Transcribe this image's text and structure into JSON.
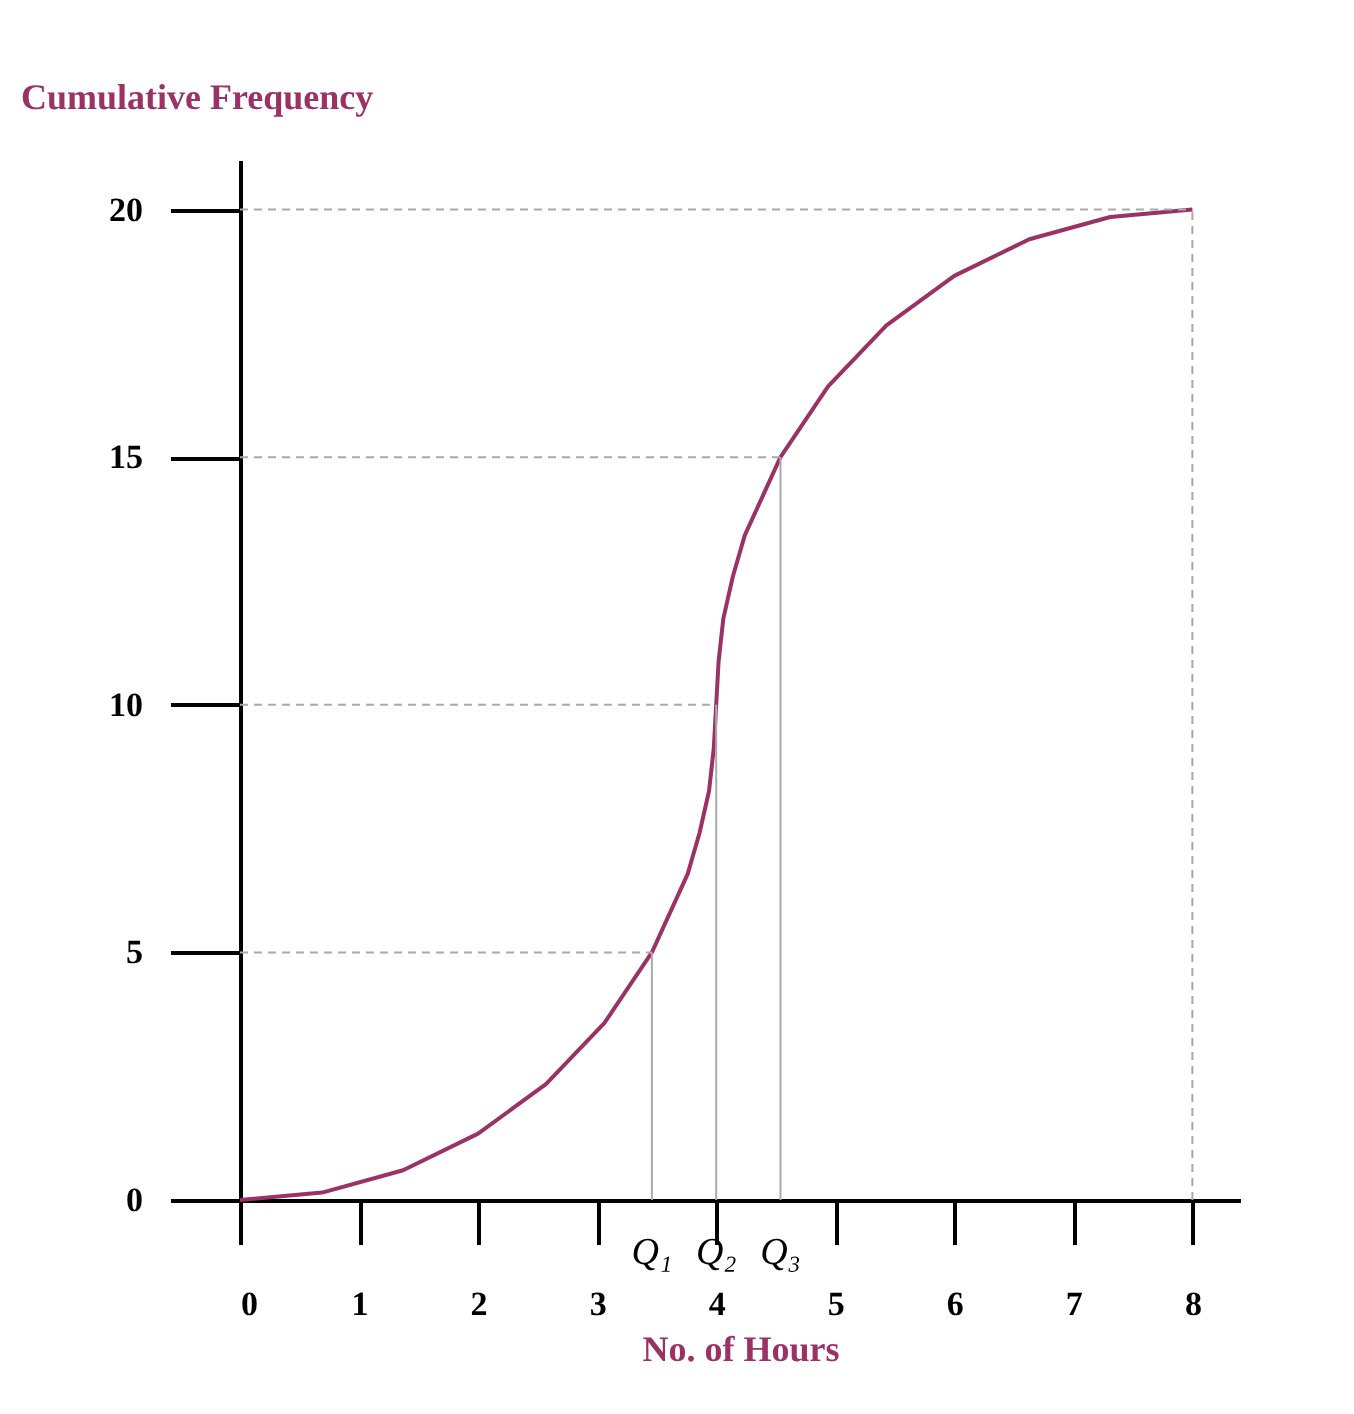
{
  "chart_data": {
    "type": "line",
    "ylabel": "Cumulative Frequency",
    "xlabel": "No. of Hours",
    "series": [
      {
        "color": "#9b3266",
        "x": [
          0,
          0.69,
          1.37,
          2.0,
          2.57,
          3.06,
          3.46,
          3.76,
          3.86,
          3.94,
          3.98,
          4.0,
          4.02,
          4.06,
          4.14,
          4.24,
          4.54,
          4.94,
          5.43,
          6.0,
          6.63,
          7.31,
          8.0
        ],
        "values": [
          0,
          0.15,
          0.6,
          1.34,
          2.34,
          3.57,
          5.0,
          6.58,
          7.41,
          8.26,
          9.13,
          10.0,
          10.87,
          11.74,
          12.59,
          13.42,
          15.0,
          16.43,
          17.66,
          18.66,
          19.4,
          19.85,
          20.0
        ]
      }
    ],
    "xlim": [
      0,
      8.4
    ],
    "xticks": [
      0,
      1,
      2,
      3,
      4,
      5,
      6,
      7,
      8
    ],
    "ylim": [
      0,
      21
    ],
    "yticks": [
      0,
      5,
      10,
      15,
      20
    ],
    "grid": false,
    "marker": "none",
    "line_style": "solid",
    "ref_lines": [
      {
        "axis": "y",
        "value": 5,
        "color": "#aaaaaa",
        "line_style": "dashed"
      },
      {
        "axis": "y",
        "value": 10,
        "color": "#aaaaaa",
        "line_style": "dashed"
      },
      {
        "axis": "y",
        "value": 15,
        "color": "#aaaaaa",
        "line_style": "dashed"
      },
      {
        "axis": "y",
        "value": 20,
        "color": "#aaaaaa",
        "line_style": "dashed"
      },
      {
        "axis": "x",
        "value": 3.46,
        "color": "#aaaaaa",
        "line_style": "solid"
      },
      {
        "axis": "x",
        "value": 4.0,
        "color": "#aaaaaa",
        "line_style": "solid"
      },
      {
        "axis": "x",
        "value": 4.54,
        "color": "#aaaaaa",
        "line_style": "solid"
      },
      {
        "axis": "x",
        "value": 8.0,
        "color": "#aaaaaa",
        "line_style": "dashed"
      }
    ],
    "annotations": [
      {
        "text": "Q₁",
        "x": 3.46,
        "y": 0
      },
      {
        "text": "Q₂",
        "x": 4.0,
        "y": 0
      },
      {
        "text": "Q₃",
        "x": 4.54,
        "y": 0
      }
    ]
  }
}
